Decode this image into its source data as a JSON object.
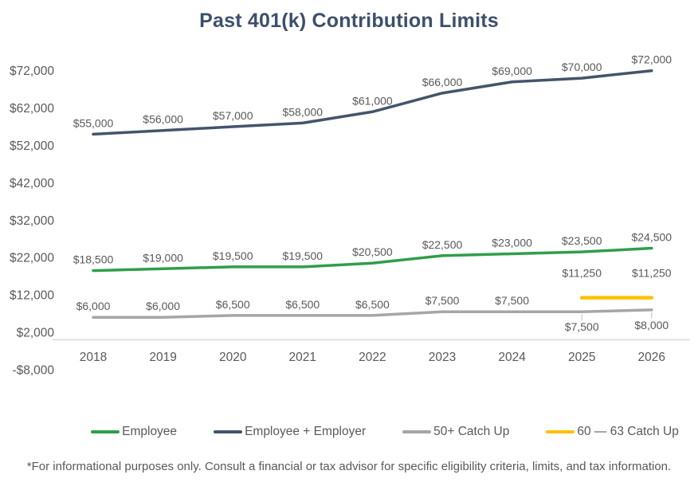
{
  "title": "Past 401(k) Contribution Limits",
  "footnote": "*For informational purposes only. Consult a financial or tax advisor for specific eligibility criteria, limits, and tax information.",
  "colors": {
    "background": "#FFFFFF",
    "title": "#3D4F6B",
    "axis_text": "#595959",
    "data_label_text": "#595959",
    "axis_line": "#D9D9D9",
    "leader_line": "#BFBFBF"
  },
  "chart_data": {
    "type": "line",
    "title": "Past 401(k) Contribution Limits",
    "categories": [
      "2018",
      "2019",
      "2020",
      "2021",
      "2022",
      "2023",
      "2024",
      "2025",
      "2026"
    ],
    "xlabel": "",
    "ylabel": "",
    "ylim": [
      -8000,
      72000
    ],
    "ytick_step": 10000,
    "ytick_labels": [
      "-$8,000",
      "$2,000",
      "$12,000",
      "$22,000",
      "$32,000",
      "$42,000",
      "$52,000",
      "$62,000",
      "$72,000"
    ],
    "grid": false,
    "legend_position": "bottom",
    "series": [
      {
        "key": "employee",
        "name": "Employee",
        "color": "#2F9E4A",
        "values": [
          18500,
          19000,
          19500,
          19500,
          20500,
          22500,
          23000,
          23500,
          24500
        ],
        "labels": [
          "$18,500",
          "$19,000",
          "$19,500",
          "$19,500",
          "$20,500",
          "$22,500",
          "$23,000",
          "$23,500",
          "$24,500"
        ]
      },
      {
        "key": "employee_employer",
        "name": "Employee + Employer",
        "color": "#44546A",
        "values": [
          55000,
          56000,
          57000,
          58000,
          61000,
          66000,
          69000,
          70000,
          72000
        ],
        "labels": [
          "$55,000",
          "$56,000",
          "$57,000",
          "$58,000",
          "$61,000",
          "$66,000",
          "$69,000",
          "$70,000",
          "$72,000"
        ]
      },
      {
        "key": "catch_up_50",
        "name": "50+ Catch Up",
        "color": "#A6A6A6",
        "values": [
          6000,
          6000,
          6500,
          6500,
          6500,
          7500,
          7500,
          7500,
          8000
        ],
        "labels": [
          "$6,000",
          "$6,000",
          "$6,500",
          "$6,500",
          "$6,500",
          "$7,500",
          "$7,500",
          "$7,500",
          "$8,000"
        ],
        "below_label_indices": [
          7,
          8
        ]
      },
      {
        "key": "catch_up_60_63",
        "name": "60 — 63 Catch Up",
        "color": "#FFC000",
        "values": [
          null,
          null,
          null,
          null,
          null,
          null,
          null,
          11250,
          11250
        ],
        "labels": [
          null,
          null,
          null,
          null,
          null,
          null,
          null,
          "$11,250",
          "$11,250"
        ],
        "label_offset": 26
      }
    ]
  }
}
